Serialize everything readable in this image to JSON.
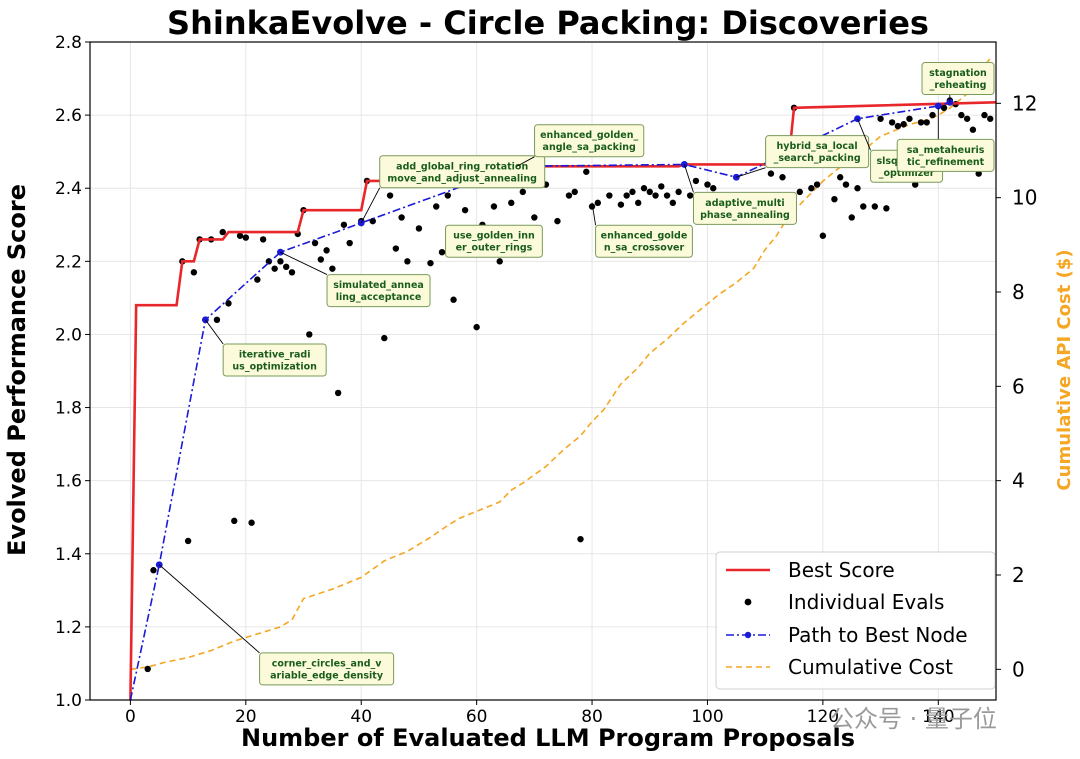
{
  "chart_data": {
    "type": "line",
    "title": "ShinkaEvolve - Circle Packing: Discoveries",
    "xlabel": "Number of Evaluated LLM Program Proposals",
    "ylabel": "Evolved Performance Score",
    "y2label": "Cumulative API Cost ($)",
    "xlim": [
      -7,
      150
    ],
    "ylim": [
      1.0,
      2.8
    ],
    "y2lim": [
      -0.65,
      13.3
    ],
    "xticks": [
      "0",
      "20",
      "40",
      "60",
      "80",
      "100",
      "120",
      "140"
    ],
    "yticks": [
      "1.0",
      "1.2",
      "1.4",
      "1.6",
      "1.8",
      "2.0",
      "2.2",
      "2.4",
      "2.6",
      "2.8"
    ],
    "y2ticks": [
      "0",
      "2",
      "4",
      "6",
      "8",
      "10",
      "12"
    ],
    "grid": true,
    "legend": {
      "placement": "bottom-right",
      "entries": [
        "Best Score",
        "Individual Evals",
        "Path to Best Node",
        "Cumulative Cost"
      ]
    },
    "colors": {
      "best": "#e8272b",
      "evals": "#000000",
      "path": "#1a1ad8",
      "cost": "#f5a623",
      "ann_bg": "#fbfbdc",
      "ann_border": "#7a9a5a",
      "ann_text": "#1a5d1a"
    },
    "series": [
      {
        "name": "Best Score",
        "type": "step",
        "x": [
          0,
          1,
          8,
          9,
          11,
          12,
          16,
          17,
          29,
          30,
          40,
          41,
          66,
          67,
          95,
          96,
          114,
          115,
          150
        ],
        "y": [
          1.0,
          2.08,
          2.08,
          2.2,
          2.2,
          2.26,
          2.26,
          2.28,
          2.28,
          2.34,
          2.34,
          2.42,
          2.42,
          2.46,
          2.46,
          2.465,
          2.465,
          2.62,
          2.635
        ]
      },
      {
        "name": "Individual Evals",
        "type": "scatter",
        "points": [
          [
            3,
            1.085
          ],
          [
            4,
            1.355
          ],
          [
            5,
            1.37
          ],
          [
            9,
            2.2
          ],
          [
            10,
            1.435
          ],
          [
            11,
            2.17
          ],
          [
            12,
            2.26
          ],
          [
            13,
            2.04
          ],
          [
            14,
            2.26
          ],
          [
            15,
            2.04
          ],
          [
            16,
            2.28
          ],
          [
            17,
            2.085
          ],
          [
            18,
            1.49
          ],
          [
            19,
            2.27
          ],
          [
            20,
            2.265
          ],
          [
            21,
            1.485
          ],
          [
            22,
            2.15
          ],
          [
            23,
            2.26
          ],
          [
            24,
            2.2
          ],
          [
            25,
            2.18
          ],
          [
            26,
            2.2
          ],
          [
            27,
            2.185
          ],
          [
            28,
            2.17
          ],
          [
            29,
            2.275
          ],
          [
            30,
            2.34
          ],
          [
            31,
            2.0
          ],
          [
            32,
            2.25
          ],
          [
            33,
            2.205
          ],
          [
            34,
            2.23
          ],
          [
            35,
            2.18
          ],
          [
            36,
            1.84
          ],
          [
            37,
            2.3
          ],
          [
            38,
            2.25
          ],
          [
            40,
            2.31
          ],
          [
            41,
            2.42
          ],
          [
            42,
            2.31
          ],
          [
            44,
            1.99
          ],
          [
            45,
            2.38
          ],
          [
            46,
            2.235
          ],
          [
            47,
            2.32
          ],
          [
            48,
            2.2
          ],
          [
            50,
            2.29
          ],
          [
            52,
            2.195
          ],
          [
            53,
            2.35
          ],
          [
            54,
            2.225
          ],
          [
            55,
            2.38
          ],
          [
            56,
            2.095
          ],
          [
            57,
            2.22
          ],
          [
            58,
            2.34
          ],
          [
            59,
            2.26
          ],
          [
            60,
            2.02
          ],
          [
            61,
            2.3
          ],
          [
            62,
            2.29
          ],
          [
            63,
            2.35
          ],
          [
            64,
            2.2
          ],
          [
            66,
            2.36
          ],
          [
            67,
            2.46
          ],
          [
            68,
            2.39
          ],
          [
            70,
            2.32
          ],
          [
            72,
            2.41
          ],
          [
            74,
            2.31
          ],
          [
            76,
            2.38
          ],
          [
            77,
            2.39
          ],
          [
            78,
            1.44
          ],
          [
            79,
            2.445
          ],
          [
            80,
            2.35
          ],
          [
            81,
            2.36
          ],
          [
            83,
            2.38
          ],
          [
            85,
            2.355
          ],
          [
            86,
            2.38
          ],
          [
            87,
            2.39
          ],
          [
            88,
            2.36
          ],
          [
            89,
            2.4
          ],
          [
            90,
            2.39
          ],
          [
            91,
            2.38
          ],
          [
            92,
            2.405
          ],
          [
            93,
            2.38
          ],
          [
            94,
            2.36
          ],
          [
            95,
            2.39
          ],
          [
            96,
            2.465
          ],
          [
            97,
            2.38
          ],
          [
            98,
            2.42
          ],
          [
            99,
            2.35
          ],
          [
            100,
            2.41
          ],
          [
            101,
            2.4
          ],
          [
            103,
            2.37
          ],
          [
            105,
            2.43
          ],
          [
            107,
            2.36
          ],
          [
            110,
            2.34
          ],
          [
            111,
            2.44
          ],
          [
            113,
            2.43
          ],
          [
            114,
            2.38
          ],
          [
            115,
            2.62
          ],
          [
            116,
            2.39
          ],
          [
            118,
            2.4
          ],
          [
            119,
            2.41
          ],
          [
            120,
            2.27
          ],
          [
            122,
            2.37
          ],
          [
            123,
            2.43
          ],
          [
            124,
            2.41
          ],
          [
            125,
            2.32
          ],
          [
            126,
            2.4
          ],
          [
            127,
            2.35
          ],
          [
            129,
            2.35
          ],
          [
            130,
            2.59
          ],
          [
            131,
            2.345
          ],
          [
            132,
            2.58
          ],
          [
            133,
            2.57
          ],
          [
            134,
            2.575
          ],
          [
            135,
            2.59
          ],
          [
            136,
            2.41
          ],
          [
            137,
            2.58
          ],
          [
            138,
            2.58
          ],
          [
            139,
            2.6
          ],
          [
            140,
            2.625
          ],
          [
            141,
            2.62
          ],
          [
            142,
            2.64
          ],
          [
            143,
            2.63
          ],
          [
            144,
            2.6
          ],
          [
            145,
            2.59
          ],
          [
            146,
            2.56
          ],
          [
            147,
            2.44
          ],
          [
            148,
            2.6
          ],
          [
            149,
            2.59
          ]
        ]
      },
      {
        "name": "Path to Best Node",
        "type": "line",
        "x": [
          0,
          5,
          13,
          26,
          40,
          67,
          96,
          105,
          126,
          140,
          142
        ],
        "y": [
          1.0,
          1.37,
          2.04,
          2.225,
          2.305,
          2.46,
          2.465,
          2.43,
          2.59,
          2.625,
          2.635
        ]
      },
      {
        "name": "Cumulative Cost",
        "type": "line",
        "axis": "right",
        "x": [
          0,
          3,
          6,
          10,
          14,
          18,
          22,
          26,
          28,
          30,
          35,
          40,
          44,
          48,
          52,
          55,
          57,
          60,
          64,
          66,
          68,
          72,
          75,
          78,
          80,
          82,
          85,
          88,
          90,
          93,
          96,
          99,
          102,
          105,
          108,
          110,
          112,
          114,
          116,
          118,
          120,
          123,
          126,
          128,
          130,
          133,
          135,
          138,
          140,
          142,
          144,
          146,
          147,
          148,
          149
        ],
        "y": [
          0.0,
          0.05,
          0.15,
          0.25,
          0.4,
          0.6,
          0.75,
          0.9,
          1.05,
          1.5,
          1.7,
          1.95,
          2.3,
          2.5,
          2.8,
          3.05,
          3.2,
          3.35,
          3.55,
          3.8,
          3.95,
          4.3,
          4.65,
          4.95,
          5.25,
          5.5,
          6.05,
          6.4,
          6.7,
          7.0,
          7.35,
          7.65,
          7.95,
          8.2,
          8.5,
          8.9,
          9.2,
          9.6,
          9.85,
          10.1,
          10.35,
          10.65,
          10.9,
          11.1,
          11.3,
          11.45,
          11.55,
          11.65,
          11.75,
          11.9,
          12.1,
          12.3,
          12.55,
          12.8,
          12.95
        ]
      }
    ],
    "annotations": [
      {
        "text": [
          "corner_circles_and_v",
          "ariable_edge_density"
        ],
        "point": [
          5,
          1.37
        ],
        "at": [
          34,
          1.085
        ]
      },
      {
        "text": [
          "iterative_radi",
          "us_optimization"
        ],
        "point": [
          13,
          2.04
        ],
        "at": [
          25,
          1.93
        ]
      },
      {
        "text": [
          "simulated_annea",
          "ling_acceptance"
        ],
        "point": [
          26,
          2.225
        ],
        "at": [
          43,
          2.12
        ]
      },
      {
        "text": [
          "add_global_ring_rotation",
          "move_and_adjust_annealing"
        ],
        "point": [
          40,
          2.305
        ],
        "at": [
          57.5,
          2.445
        ]
      },
      {
        "text": [
          "use_golden_inn",
          "er_outer_rings"
        ],
        "point": [
          62,
          2.27
        ],
        "at": [
          63,
          2.255
        ]
      },
      {
        "text": [
          "enhanced_golden_",
          "angle_sa_packing"
        ],
        "point": [
          67,
          2.46
        ],
        "at": [
          79.5,
          2.53
        ]
      },
      {
        "text": [
          "enhanced_golde",
          "n_sa_crossover"
        ],
        "point": [
          80,
          2.36
        ],
        "at": [
          89,
          2.255
        ]
      },
      {
        "text": [
          "adaptive_multi",
          "phase_annealing"
        ],
        "point": [
          96,
          2.465
        ],
        "at": [
          106.5,
          2.345
        ]
      },
      {
        "text": [
          "hybrid_sa_local",
          "_search_packing"
        ],
        "point": [
          105,
          2.43
        ],
        "at": [
          119,
          2.5
        ]
      },
      {
        "text": [
          "slsqp_meta",
          "_optimizer"
        ],
        "point": [
          126,
          2.59
        ],
        "at": [
          134.5,
          2.46
        ]
      },
      {
        "text": [
          "stagnation",
          "_reheating"
        ],
        "point": [
          142,
          2.635
        ],
        "at": [
          147,
          2.7
        ]
      },
      {
        "text": [
          "sa_metaheuris",
          "tic_refinement"
        ],
        "point": [
          140,
          2.62
        ],
        "at": [
          149.5,
          2.49
        ]
      }
    ]
  },
  "watermark": "公众号 · 量子位"
}
